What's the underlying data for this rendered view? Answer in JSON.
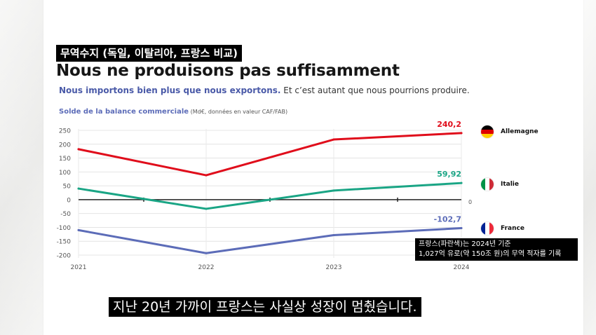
{
  "overlay_title": "무역수지 (독일, 이탈리아, 프랑스 비교)",
  "title": "Nous ne produisons pas suffisamment",
  "subtitle_highlight": "Nous importons bien plus que nous exportons.",
  "subtitle_rest": " Et c’est autant que nous pourrions produire.",
  "axis_title": "Solde de la balance commerciale",
  "axis_unit": " (Md€, données en valeur CAF/FAB)",
  "annotation": {
    "line1": "프랑스(파란색)는 2024년 기준",
    "line2": "1,027억 유로(약 150조 원)의 무역 적자를 기록"
  },
  "caption": "지난 20년 가까이 프랑스는 사실상 성장이 멈췄습니다.",
  "colors": {
    "Allemagne": "#e00d1b",
    "Italie": "#1aa585",
    "France": "#5c6cb8"
  },
  "chart_data": {
    "type": "line",
    "x": [
      "2021",
      "2022",
      "2023",
      "2024"
    ],
    "ylim": [
      -200,
      250
    ],
    "yticks": [
      250,
      200,
      150,
      100,
      50,
      0,
      -50,
      -100,
      -150,
      -200
    ],
    "grid": true,
    "legend_position": "right",
    "zero_line_label": "0",
    "series": [
      {
        "name": "Allemagne",
        "values": [
          182,
          88,
          217,
          240.2
        ],
        "end_label": "240,2"
      },
      {
        "name": "Italie",
        "values": [
          40,
          -33,
          33,
          59.92
        ],
        "end_label": "59,92"
      },
      {
        "name": "France",
        "values": [
          -110,
          -193,
          -128,
          -102.7
        ],
        "end_label": "-102,7"
      }
    ]
  }
}
